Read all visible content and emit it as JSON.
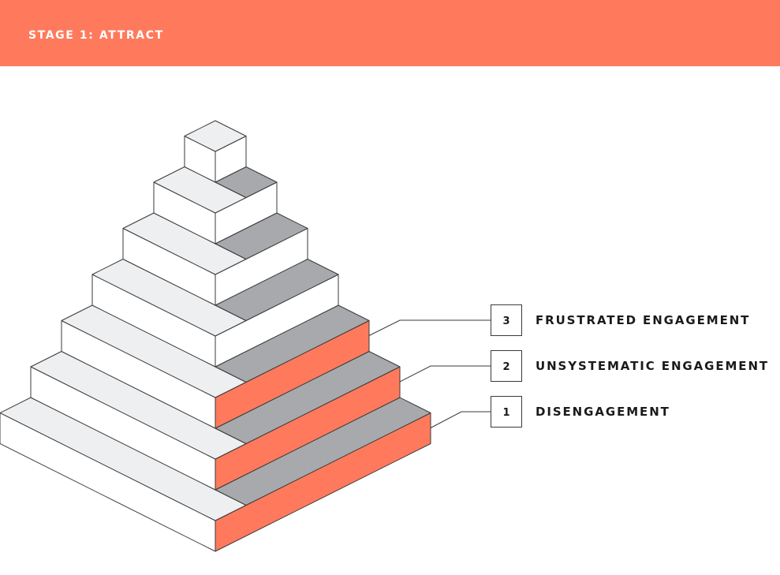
{
  "header": {
    "title": "STAGE 1: ATTRACT"
  },
  "colors": {
    "accent": "#FF7A5C",
    "shade": "#A7A9AC",
    "light": "#EEEFF1",
    "face": "#FFFFFF",
    "stroke": "#3a3a3a"
  },
  "pyramid": {
    "levels": 7,
    "highlighted_levels_from_bottom": 3
  },
  "legend": [
    {
      "number": "3",
      "label": "FRUSTRATED ENGAGEMENT"
    },
    {
      "number": "2",
      "label": "UNSYSTEMATIC ENGAGEMENT"
    },
    {
      "number": "1",
      "label": "DISENGAGEMENT"
    }
  ]
}
